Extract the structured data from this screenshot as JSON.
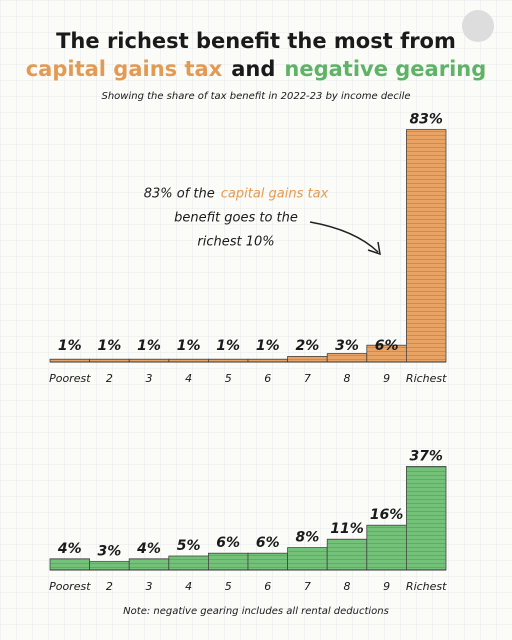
{
  "title": {
    "line1": "The richest benefit the most from",
    "part1": "capital gains tax",
    "part2": "and",
    "part3": "negative gearing"
  },
  "subtitle": "Showing the share of tax benefit in 2022-23 by income decile",
  "note": "Note: negative gearing includes all rental deductions",
  "chart_data": [
    {
      "type": "bar",
      "color": "#e9a465",
      "categories": [
        "Poorest",
        "2",
        "3",
        "4",
        "5",
        "6",
        "7",
        "8",
        "9",
        "Richest"
      ],
      "values": [
        1,
        1,
        1,
        1,
        1,
        1,
        2,
        3,
        6,
        83
      ],
      "value_labels": [
        "1%",
        "1%",
        "1%",
        "1%",
        "1%",
        "1%",
        "2%",
        "3%",
        "6%",
        "83%"
      ],
      "annotation": {
        "part1": "83% of the",
        "part2": "capital gains tax",
        "line2": "benefit goes to the",
        "line3": "richest 10%"
      }
    },
    {
      "type": "bar",
      "color": "#74c17a",
      "categories": [
        "Poorest",
        "2",
        "3",
        "4",
        "5",
        "6",
        "7",
        "8",
        "9",
        "Richest"
      ],
      "values": [
        4,
        3,
        4,
        5,
        6,
        6,
        8,
        11,
        16,
        37
      ],
      "value_labels": [
        "4%",
        "3%",
        "4%",
        "5%",
        "6%",
        "6%",
        "8%",
        "11%",
        "16%",
        "37%"
      ]
    }
  ]
}
